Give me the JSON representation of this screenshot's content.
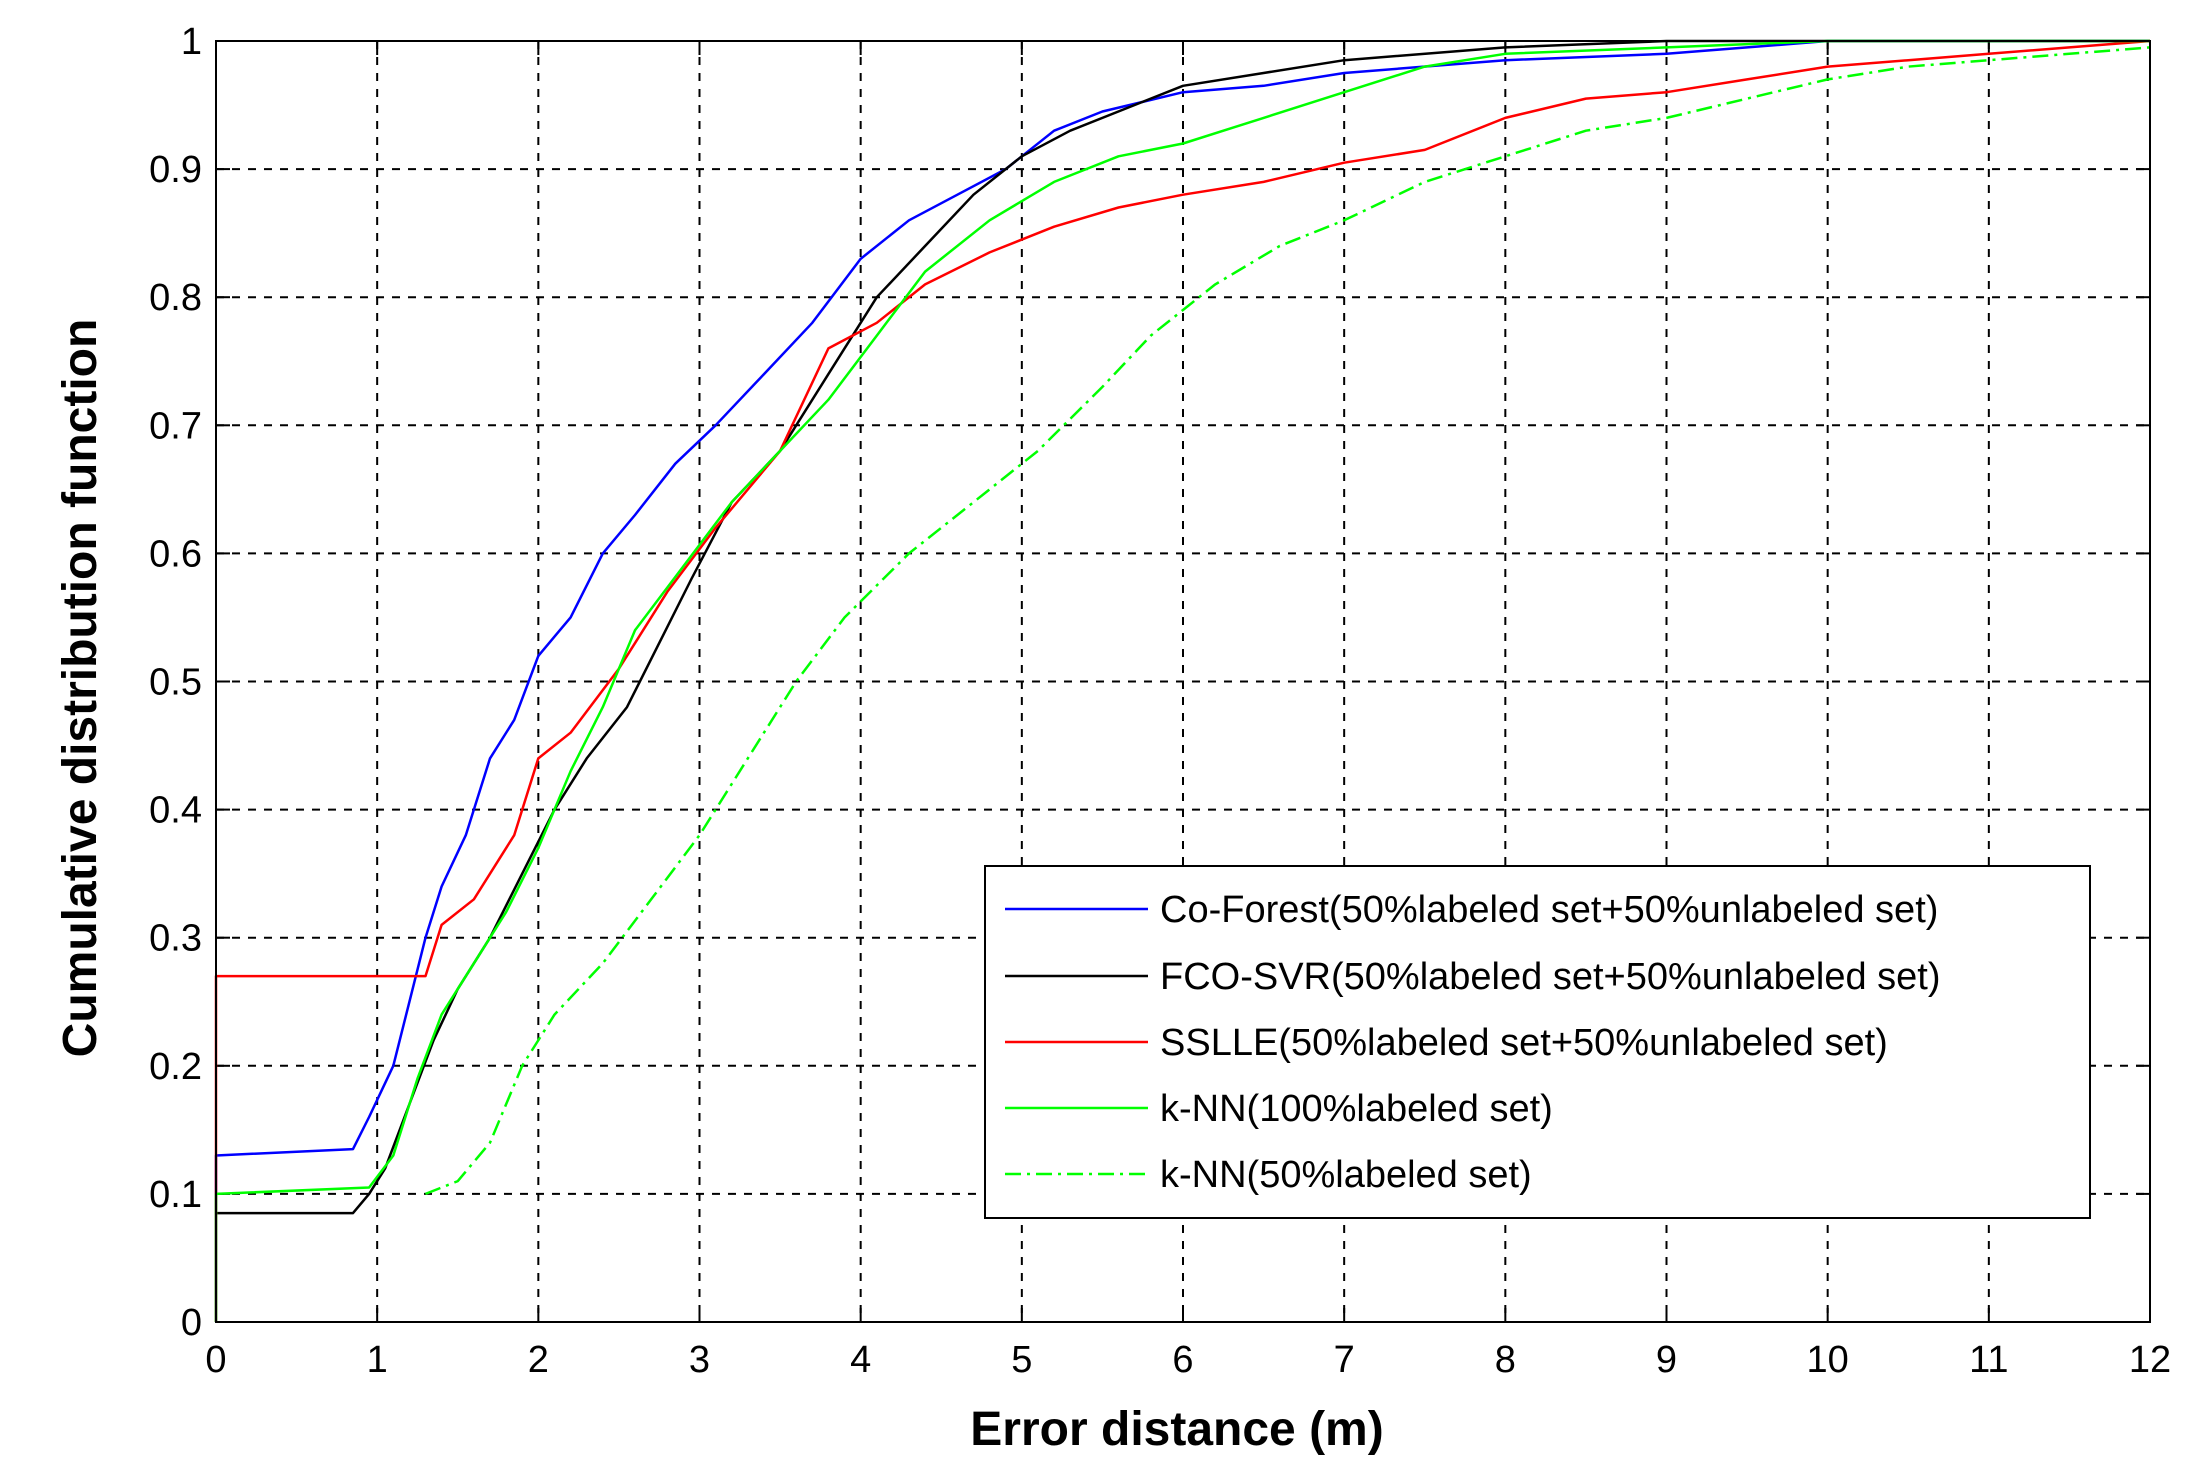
{
  "chart_data": {
    "type": "line",
    "title": "",
    "xlabel": "Error distance (m)",
    "ylabel": "Cumulative distribution function",
    "xlim": [
      0,
      12
    ],
    "ylim": [
      0,
      1
    ],
    "xticks": [
      0,
      1,
      2,
      3,
      4,
      5,
      6,
      7,
      8,
      9,
      10,
      11,
      12
    ],
    "yticks": [
      0,
      0.1,
      0.2,
      0.3,
      0.4,
      0.5,
      0.6,
      0.7,
      0.8,
      0.9,
      1
    ],
    "xtick_labels": [
      "0",
      "1",
      "2",
      "3",
      "4",
      "5",
      "6",
      "7",
      "8",
      "9",
      "10",
      "11",
      "12"
    ],
    "ytick_labels": [
      "0",
      "0.1",
      "0.2",
      "0.3",
      "0.4",
      "0.5",
      "0.6",
      "0.7",
      "0.8",
      "0.9",
      "1"
    ],
    "grid": true,
    "legend_position": "lower-right",
    "series": [
      {
        "name": "Co-Forest(50%labeled set+50%unlabeled set)",
        "color": "#0000ff",
        "dash": "solid",
        "points": [
          [
            0,
            0
          ],
          [
            0,
            0.13
          ],
          [
            0.85,
            0.135
          ],
          [
            0.95,
            0.16
          ],
          [
            1.1,
            0.2
          ],
          [
            1.2,
            0.25
          ],
          [
            1.3,
            0.3
          ],
          [
            1.4,
            0.34
          ],
          [
            1.55,
            0.38
          ],
          [
            1.7,
            0.44
          ],
          [
            1.85,
            0.47
          ],
          [
            2.0,
            0.52
          ],
          [
            2.2,
            0.55
          ],
          [
            2.4,
            0.6
          ],
          [
            2.6,
            0.63
          ],
          [
            2.85,
            0.67
          ],
          [
            3.1,
            0.7
          ],
          [
            3.4,
            0.74
          ],
          [
            3.7,
            0.78
          ],
          [
            4.0,
            0.83
          ],
          [
            4.3,
            0.86
          ],
          [
            4.6,
            0.88
          ],
          [
            4.9,
            0.9
          ],
          [
            5.2,
            0.93
          ],
          [
            5.5,
            0.945
          ],
          [
            6.0,
            0.96
          ],
          [
            6.5,
            0.965
          ],
          [
            7.0,
            0.975
          ],
          [
            8.0,
            0.985
          ],
          [
            9.0,
            0.99
          ],
          [
            9.5,
            0.995
          ],
          [
            10.0,
            1.0
          ],
          [
            12.0,
            1.0
          ]
        ]
      },
      {
        "name": "FCO-SVR(50%labeled set+50%unlabeled set)",
        "color": "#000000",
        "dash": "solid",
        "points": [
          [
            0,
            0.085
          ],
          [
            0.85,
            0.085
          ],
          [
            0.95,
            0.1
          ],
          [
            1.05,
            0.12
          ],
          [
            1.2,
            0.17
          ],
          [
            1.35,
            0.22
          ],
          [
            1.5,
            0.26
          ],
          [
            1.7,
            0.3
          ],
          [
            1.9,
            0.35
          ],
          [
            2.1,
            0.4
          ],
          [
            2.3,
            0.44
          ],
          [
            2.55,
            0.48
          ],
          [
            2.75,
            0.53
          ],
          [
            2.95,
            0.58
          ],
          [
            3.2,
            0.64
          ],
          [
            3.5,
            0.68
          ],
          [
            3.8,
            0.74
          ],
          [
            4.1,
            0.8
          ],
          [
            4.4,
            0.84
          ],
          [
            4.7,
            0.88
          ],
          [
            5.0,
            0.91
          ],
          [
            5.3,
            0.93
          ],
          [
            5.7,
            0.95
          ],
          [
            6.0,
            0.965
          ],
          [
            6.5,
            0.975
          ],
          [
            7.0,
            0.985
          ],
          [
            8.0,
            0.995
          ],
          [
            9.0,
            1.0
          ],
          [
            12.0,
            1.0
          ]
        ]
      },
      {
        "name": "SSLLE(50%labeled set+50%unlabeled set)",
        "color": "#ff0000",
        "dash": "solid",
        "points": [
          [
            0,
            0
          ],
          [
            0,
            0.27
          ],
          [
            1.3,
            0.27
          ],
          [
            1.4,
            0.31
          ],
          [
            1.6,
            0.33
          ],
          [
            1.85,
            0.38
          ],
          [
            2.0,
            0.44
          ],
          [
            2.2,
            0.46
          ],
          [
            2.5,
            0.51
          ],
          [
            2.8,
            0.57
          ],
          [
            3.1,
            0.62
          ],
          [
            3.5,
            0.68
          ],
          [
            3.8,
            0.76
          ],
          [
            4.1,
            0.78
          ],
          [
            4.4,
            0.81
          ],
          [
            4.8,
            0.835
          ],
          [
            5.2,
            0.855
          ],
          [
            5.6,
            0.87
          ],
          [
            6.0,
            0.88
          ],
          [
            6.5,
            0.89
          ],
          [
            7.0,
            0.905
          ],
          [
            7.5,
            0.915
          ],
          [
            8.0,
            0.94
          ],
          [
            8.5,
            0.955
          ],
          [
            9.0,
            0.96
          ],
          [
            9.5,
            0.97
          ],
          [
            10.0,
            0.98
          ],
          [
            10.5,
            0.985
          ],
          [
            11.0,
            0.99
          ],
          [
            11.5,
            0.995
          ],
          [
            12.0,
            1.0
          ]
        ]
      },
      {
        "name": "k-NN(100%labeled set)",
        "color": "#00ff00",
        "dash": "solid",
        "points": [
          [
            0,
            0
          ],
          [
            0,
            0.1
          ],
          [
            0.95,
            0.105
          ],
          [
            1.1,
            0.13
          ],
          [
            1.25,
            0.19
          ],
          [
            1.4,
            0.24
          ],
          [
            1.6,
            0.28
          ],
          [
            1.8,
            0.32
          ],
          [
            2.0,
            0.37
          ],
          [
            2.2,
            0.43
          ],
          [
            2.4,
            0.48
          ],
          [
            2.6,
            0.54
          ],
          [
            2.9,
            0.59
          ],
          [
            3.2,
            0.64
          ],
          [
            3.5,
            0.68
          ],
          [
            3.8,
            0.72
          ],
          [
            4.1,
            0.77
          ],
          [
            4.4,
            0.82
          ],
          [
            4.8,
            0.86
          ],
          [
            5.2,
            0.89
          ],
          [
            5.6,
            0.91
          ],
          [
            6.0,
            0.92
          ],
          [
            6.5,
            0.94
          ],
          [
            7.0,
            0.96
          ],
          [
            7.5,
            0.98
          ],
          [
            8.0,
            0.99
          ],
          [
            9.0,
            0.995
          ],
          [
            10.0,
            1.0
          ],
          [
            12.0,
            1.0
          ]
        ]
      },
      {
        "name": "k-NN(50%labeled set)",
        "color": "#00ff00",
        "dash": "dashdot",
        "points": [
          [
            1.3,
            0.1
          ],
          [
            1.5,
            0.11
          ],
          [
            1.7,
            0.14
          ],
          [
            1.9,
            0.2
          ],
          [
            2.1,
            0.24
          ],
          [
            2.4,
            0.28
          ],
          [
            2.7,
            0.33
          ],
          [
            3.0,
            0.38
          ],
          [
            3.3,
            0.44
          ],
          [
            3.6,
            0.5
          ],
          [
            3.9,
            0.55
          ],
          [
            4.3,
            0.6
          ],
          [
            4.7,
            0.64
          ],
          [
            5.1,
            0.68
          ],
          [
            5.5,
            0.73
          ],
          [
            5.8,
            0.77
          ],
          [
            6.2,
            0.81
          ],
          [
            6.6,
            0.84
          ],
          [
            7.0,
            0.86
          ],
          [
            7.5,
            0.89
          ],
          [
            8.0,
            0.91
          ],
          [
            8.5,
            0.93
          ],
          [
            9.0,
            0.94
          ],
          [
            9.5,
            0.955
          ],
          [
            10.0,
            0.97
          ],
          [
            10.5,
            0.98
          ],
          [
            11.0,
            0.985
          ],
          [
            11.5,
            0.99
          ],
          [
            12.0,
            0.995
          ]
        ]
      }
    ]
  }
}
